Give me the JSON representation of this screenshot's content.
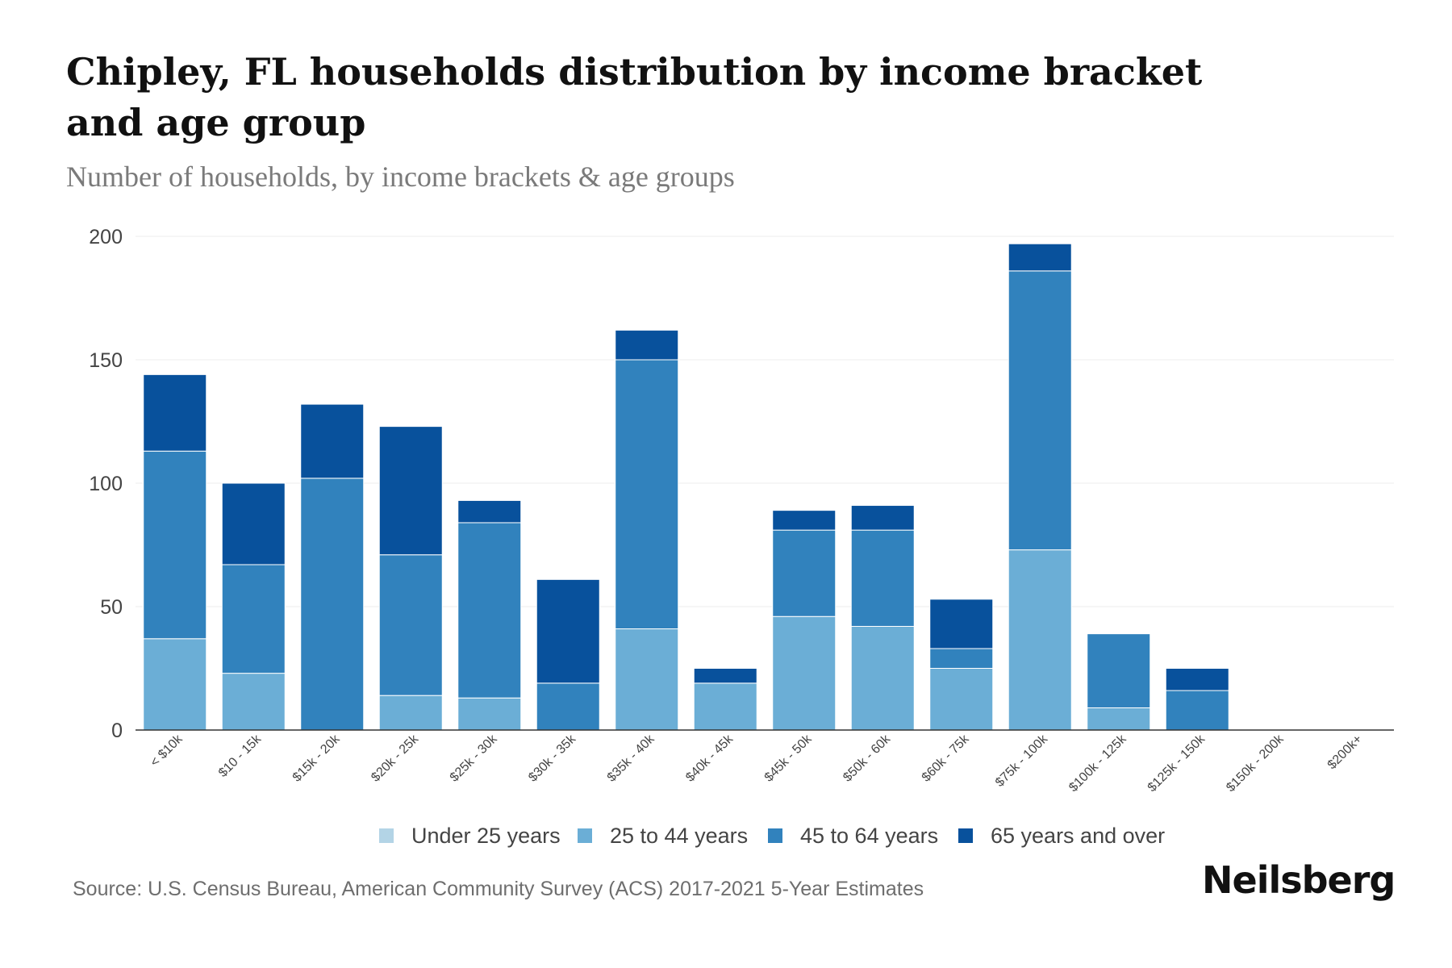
{
  "chart_data": {
    "type": "bar",
    "stacked": true,
    "title": "Chipley, FL households distribution by income bracket and age group",
    "subtitle": "Number of households, by income brackets & age groups",
    "xlabel": "",
    "ylabel": "",
    "ylim": [
      0,
      200
    ],
    "yticks": [
      0,
      50,
      100,
      150,
      200
    ],
    "grid": true,
    "legend_position": "bottom",
    "categories": [
      "< $10k",
      "$10 - 15k",
      "$15k - 20k",
      "$20k - 25k",
      "$25k - 30k",
      "$30k - 35k",
      "$35k - 40k",
      "$40k - 45k",
      "$45k - 50k",
      "$50k - 60k",
      "$60k - 75k",
      "$75k - 100k",
      "$100k - 125k",
      "$125k - 150k",
      "$150k - 200k",
      "$200k+"
    ],
    "series": [
      {
        "name": "Under 25 years",
        "color": "#b3d4e6",
        "values": [
          0,
          0,
          0,
          0,
          0,
          0,
          0,
          0,
          0,
          0,
          0,
          0,
          0,
          0,
          0,
          0
        ]
      },
      {
        "name": "25 to 44 years",
        "color": "#6baed6",
        "values": [
          37,
          23,
          0,
          14,
          13,
          0,
          41,
          19,
          46,
          42,
          25,
          73,
          9,
          0,
          0,
          0
        ]
      },
      {
        "name": "45 to 64 years",
        "color": "#3182bd",
        "values": [
          76,
          44,
          102,
          57,
          71,
          19,
          109,
          0,
          35,
          39,
          8,
          113,
          30,
          16,
          0,
          0
        ]
      },
      {
        "name": "65 years and over",
        "color": "#08519c",
        "values": [
          31,
          33,
          30,
          52,
          9,
          42,
          12,
          6,
          8,
          10,
          20,
          11,
          0,
          9,
          0,
          0
        ]
      }
    ]
  },
  "source": "Source: U.S. Census Bureau, American Community Survey (ACS) 2017-2021 5-Year Estimates",
  "brand": "Neilsberg"
}
